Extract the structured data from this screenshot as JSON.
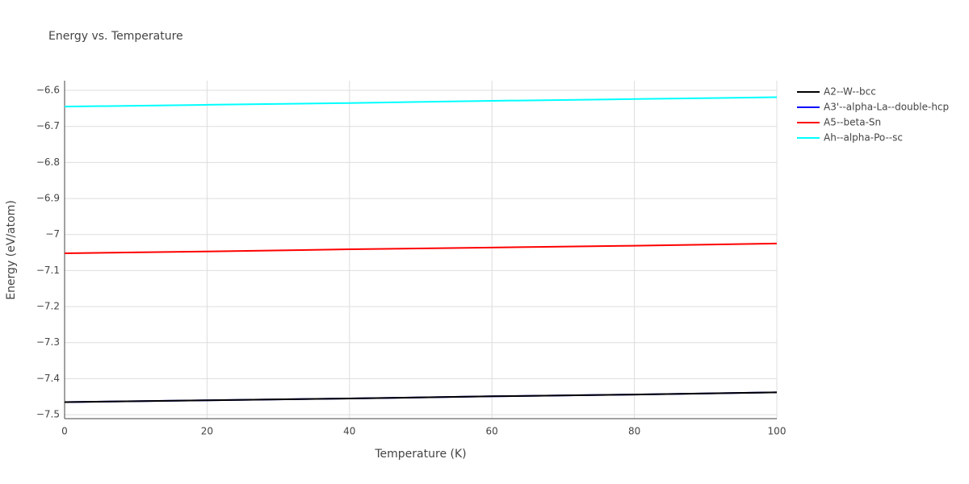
{
  "chart_data": {
    "type": "line",
    "title": "Energy vs. Temperature",
    "x_label": "Temperature (K)",
    "y_label": "Energy (eV/atom)",
    "x": [
      0,
      20,
      40,
      60,
      80,
      100
    ],
    "series": [
      {
        "name": "A2--W--bcc",
        "color": "#000000",
        "values": [
          -7.465,
          -7.46,
          -7.455,
          -7.449,
          -7.444,
          -7.438
        ]
      },
      {
        "name": "A3'--alpha-La--double-hcp",
        "color": "#0000ff",
        "values": [
          -7.465,
          -7.46,
          -7.455,
          -7.449,
          -7.444,
          -7.438
        ]
      },
      {
        "name": "A5--beta-Sn",
        "color": "#ff0000",
        "values": [
          -7.052,
          -7.047,
          -7.041,
          -7.036,
          -7.031,
          -7.025
        ]
      },
      {
        "name": "Ah--alpha-Po--sc",
        "color": "#00ffff",
        "values": [
          -6.645,
          -6.64,
          -6.635,
          -6.629,
          -6.624,
          -6.619
        ]
      }
    ],
    "xlim": [
      0,
      100
    ],
    "xticks": [
      0,
      20,
      40,
      60,
      80,
      100
    ],
    "ylim": [
      -7.511,
      -6.573
    ],
    "yticks": [
      {
        "value": -7.5,
        "label": "−7.5"
      },
      {
        "value": -7.4,
        "label": "−7.4"
      },
      {
        "value": -7.3,
        "label": "−7.3"
      },
      {
        "value": -7.2,
        "label": "−7.2"
      },
      {
        "value": -7.1,
        "label": "−7.1"
      },
      {
        "value": -7,
        "label": "−7"
      },
      {
        "value": -6.9,
        "label": "−6.9"
      },
      {
        "value": -6.8,
        "label": "−6.8"
      },
      {
        "value": -6.7,
        "label": "−6.7"
      },
      {
        "value": -6.6,
        "label": "−6.6"
      }
    ],
    "grid": true,
    "legend": "right"
  }
}
